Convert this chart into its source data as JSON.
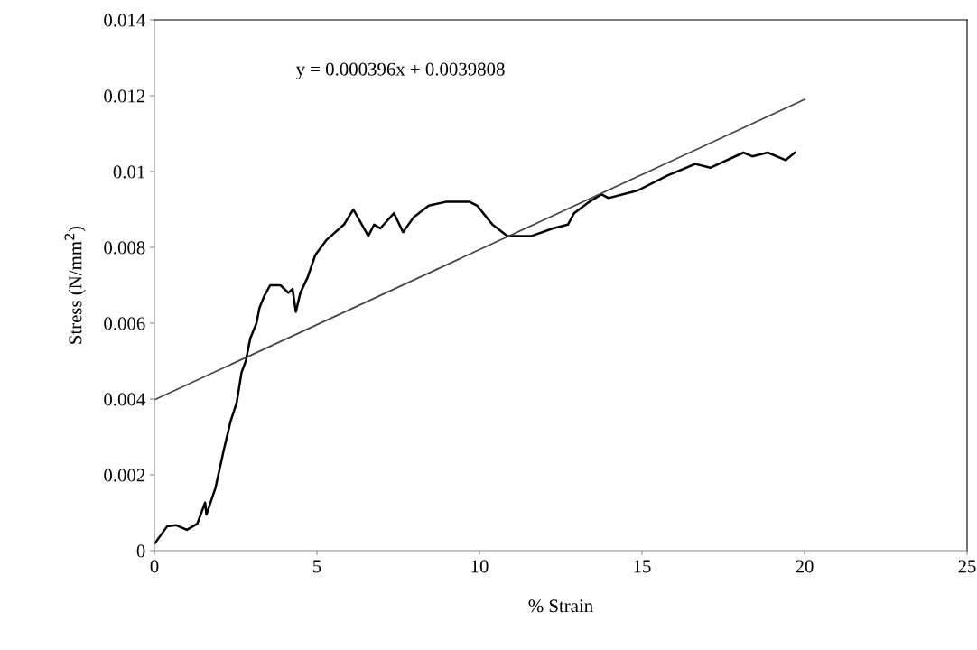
{
  "chart_data": {
    "type": "line",
    "xlabel": "% Strain",
    "ylabel": "Stress (N/mm$^{2}$)",
    "xlim": [
      0,
      25
    ],
    "xticks": [
      0,
      5,
      10,
      15,
      20,
      25
    ],
    "ylim": [
      0,
      0.014
    ],
    "yticks": [
      0,
      0.002,
      0.004,
      0.006,
      0.008,
      0.01,
      0.012,
      0.014
    ],
    "grid": false,
    "legend": false,
    "marker": "none",
    "annotations": [
      "y = 0.000396x + 0.0039808"
    ],
    "series": [
      {
        "color": "#000000",
        "x": [
          0.02,
          0.39,
          0.67,
          1.0,
          1.32,
          1.56,
          1.6,
          1.88,
          2.12,
          2.34,
          2.53,
          2.68,
          2.81,
          2.95,
          3.14,
          3.23,
          3.37,
          3.56,
          3.88,
          4.12,
          4.25,
          4.35,
          4.49,
          4.71,
          4.95,
          5.3,
          5.83,
          6.12,
          6.58,
          6.76,
          6.95,
          7.37,
          7.65,
          7.98,
          8.44,
          8.96,
          9.7,
          9.93,
          10.21,
          10.4,
          10.86,
          11.6,
          12.26,
          12.72,
          12.91,
          13.38,
          13.75,
          13.97,
          14.87,
          15.8,
          16.64,
          17.1,
          18.12,
          18.39,
          18.87,
          19.42,
          19.7
        ],
        "values": [
          0.0002,
          0.00064,
          0.00067,
          0.00055,
          0.00071,
          0.00127,
          0.00095,
          0.00166,
          0.0026,
          0.0034,
          0.0039,
          0.0047,
          0.005,
          0.0056,
          0.006,
          0.0064,
          0.0067,
          0.007,
          0.007,
          0.0068,
          0.0069,
          0.0063,
          0.0068,
          0.0072,
          0.0078,
          0.0082,
          0.0086,
          0.009,
          0.0083,
          0.0086,
          0.0085,
          0.0089,
          0.0084,
          0.0088,
          0.0091,
          0.0092,
          0.0092,
          0.0091,
          0.0088,
          0.0086,
          0.0083,
          0.0083,
          0.0085,
          0.0086,
          0.0089,
          0.0092,
          0.0094,
          0.0093,
          0.0095,
          0.0099,
          0.0102,
          0.0101,
          0.0105,
          0.0104,
          0.0105,
          0.0103,
          0.0105
        ]
      },
      {
        "type": "line",
        "color": "#404040",
        "x": [
          0,
          20
        ],
        "values": [
          0.00398,
          0.0119
        ]
      }
    ]
  }
}
